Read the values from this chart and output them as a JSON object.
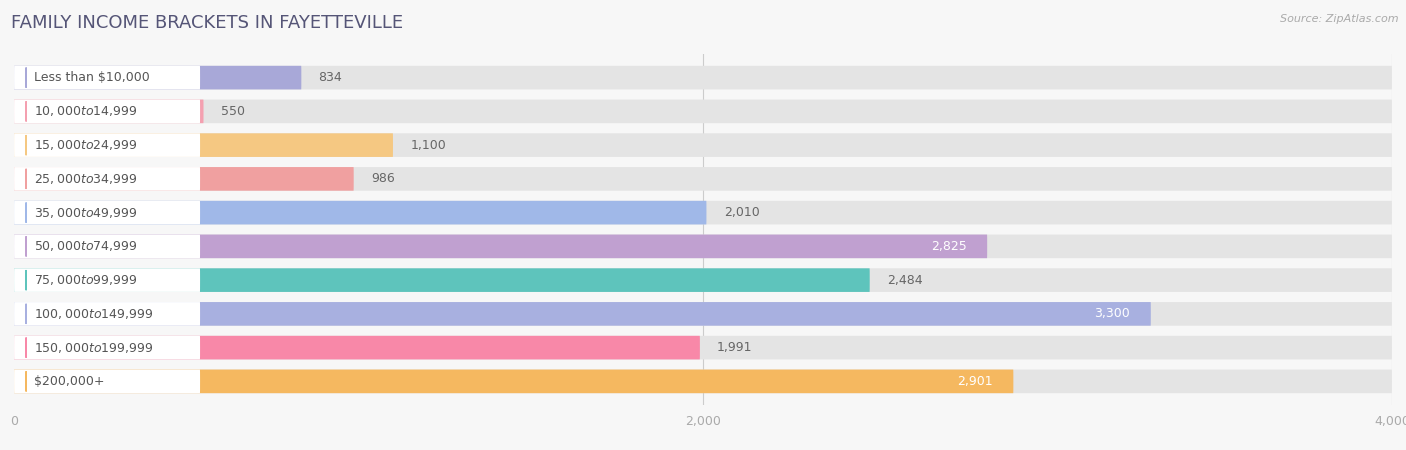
{
  "title": "FAMILY INCOME BRACKETS IN FAYETTEVILLE",
  "source": "Source: ZipAtlas.com",
  "categories": [
    "Less than $10,000",
    "$10,000 to $14,999",
    "$15,000 to $24,999",
    "$25,000 to $34,999",
    "$35,000 to $49,999",
    "$50,000 to $74,999",
    "$75,000 to $99,999",
    "$100,000 to $149,999",
    "$150,000 to $199,999",
    "$200,000+"
  ],
  "values": [
    834,
    550,
    1100,
    986,
    2010,
    2825,
    2484,
    3300,
    1991,
    2901
  ],
  "bar_colors": [
    "#a8a8d8",
    "#f4a0b0",
    "#f5c882",
    "#f0a0a0",
    "#a0b8e8",
    "#c0a0d0",
    "#5ec4bc",
    "#a8b0e0",
    "#f888a8",
    "#f5b860"
  ],
  "xlim": [
    0,
    4000
  ],
  "xticks": [
    0,
    2000,
    4000
  ],
  "background_color": "#f7f7f7",
  "bar_bg_color": "#e4e4e4",
  "label_bg_color": "#ffffff",
  "title_fontsize": 13,
  "label_fontsize": 9,
  "value_fontsize": 9,
  "bar_height": 0.7,
  "label_color": "#555555",
  "title_color": "#555577",
  "value_dark_color": "#666666",
  "value_light_color": "#ffffff",
  "value_inside_threshold": 2500
}
